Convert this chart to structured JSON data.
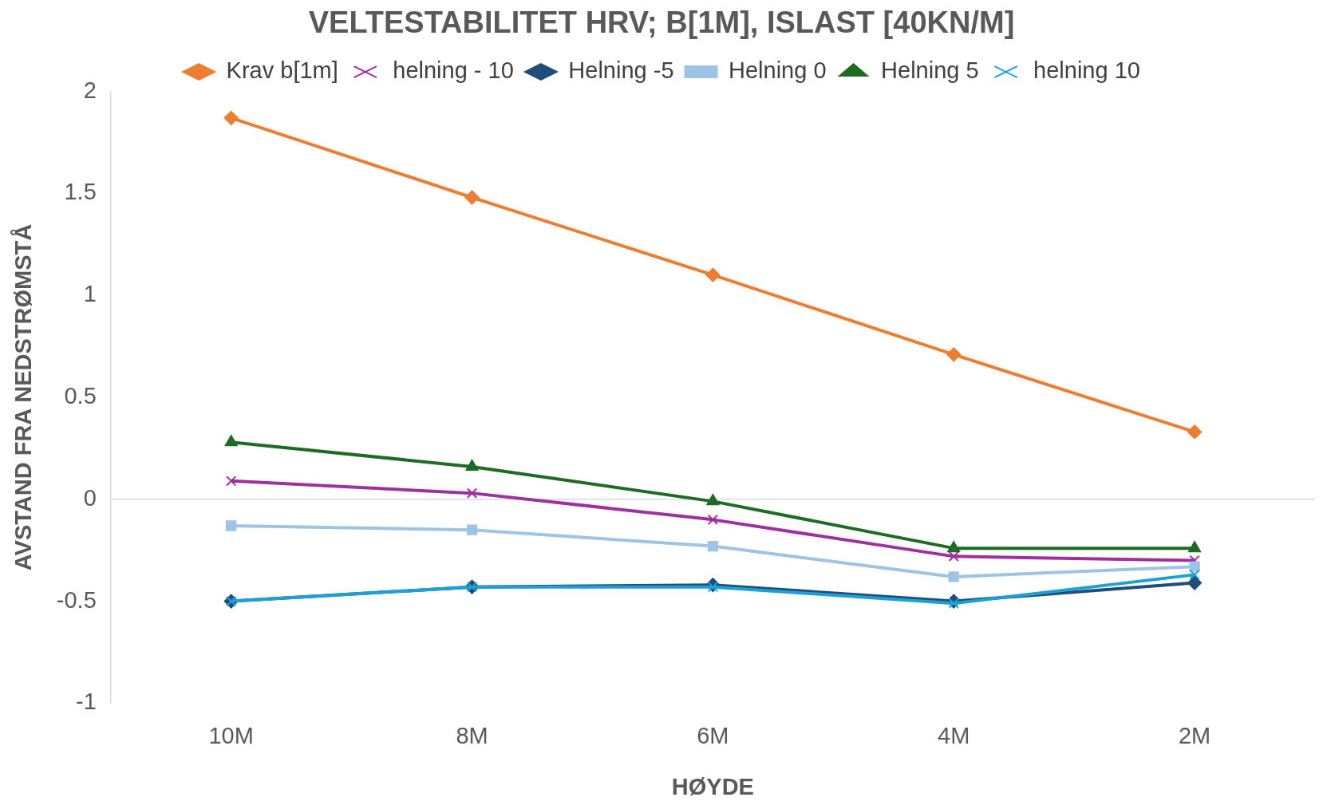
{
  "chart_data": {
    "type": "line",
    "title": "VELTESTABILITET HRV; B[1M], ISLAST [40KN/M]",
    "xlabel": "HØYDE",
    "ylabel": "AVSTAND FRA NEDSTRØMSTÅ",
    "categories": [
      "10M",
      "8M",
      "6M",
      "4M",
      "2M"
    ],
    "series": [
      {
        "name": "Krav b[1m]",
        "color": "#ed7d31",
        "marker": "diamond",
        "values": [
          1.87,
          1.48,
          1.1,
          0.71,
          0.33
        ]
      },
      {
        "name": "helning - 10",
        "color": "#a0309f",
        "marker": "cross",
        "values": [
          0.09,
          0.03,
          -0.1,
          -0.28,
          -0.3
        ]
      },
      {
        "name": "Helning -5",
        "color": "#1f4e79",
        "marker": "diamond",
        "values": [
          -0.5,
          -0.43,
          -0.42,
          -0.5,
          -0.41
        ]
      },
      {
        "name": "Helning 0",
        "color": "#9dc3e6",
        "marker": "square",
        "values": [
          -0.13,
          -0.15,
          -0.23,
          -0.38,
          -0.33
        ]
      },
      {
        "name": "Helning 5",
        "color": "#1e6b24",
        "marker": "triangle",
        "values": [
          0.28,
          0.16,
          -0.01,
          -0.24,
          -0.24
        ]
      },
      {
        "name": "helning 10",
        "color": "#1ca0d8",
        "marker": "cross",
        "values": [
          -0.5,
          -0.43,
          -0.43,
          -0.51,
          -0.37
        ]
      }
    ],
    "ylim": [
      -1,
      2
    ],
    "yticks": [
      -1,
      -0.5,
      0,
      0.5,
      1,
      1.5,
      2
    ],
    "grid": false,
    "legend": "top",
    "line_style": "solid",
    "ref_lines": [
      {
        "axis": "y",
        "value": 0,
        "color": "#d9d9d9"
      }
    ]
  }
}
